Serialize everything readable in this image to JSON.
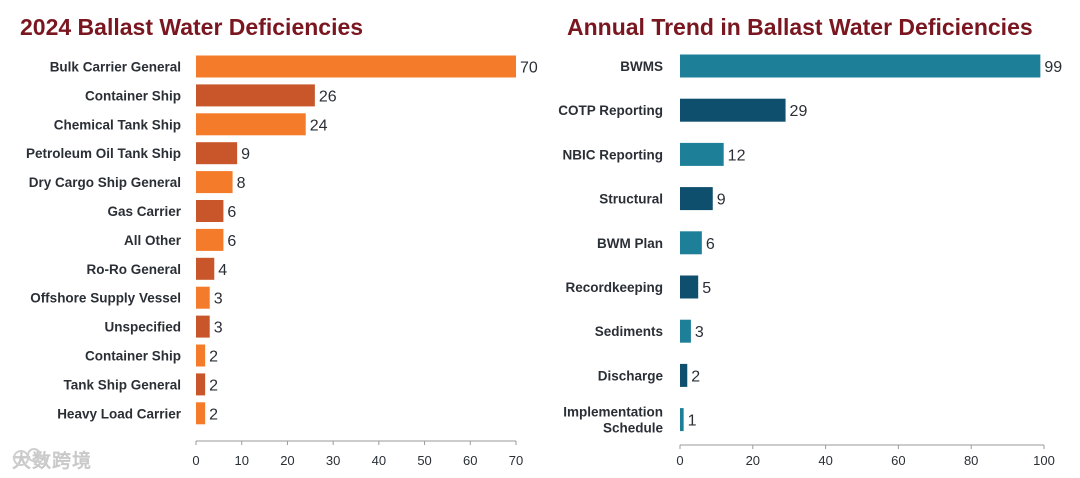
{
  "chart_data": [
    {
      "type": "bar",
      "orientation": "horizontal",
      "title": "2024 Ballast Water Deficiencies",
      "categories": [
        "Bulk Carrier General",
        "Container Ship",
        "Chemical Tank Ship",
        "Petroleum Oil Tank Ship",
        "Dry Cargo Ship General",
        "Gas Carrier",
        "All Other",
        "Ro-Ro General",
        "Offshore Supply Vessel",
        "Unspecified",
        "Container Ship",
        "Tank Ship General",
        "Heavy Load Carrier"
      ],
      "values": [
        70,
        26,
        24,
        9,
        8,
        6,
        6,
        4,
        3,
        3,
        2,
        2,
        2
      ],
      "xlim": [
        0,
        70
      ],
      "xticks": [
        0,
        10,
        20,
        30,
        40,
        50,
        60,
        70
      ],
      "colors": [
        "#f47b2a",
        "#c9562a"
      ],
      "grid": false
    },
    {
      "type": "bar",
      "orientation": "horizontal",
      "title": "Annual Trend in Ballast Water Deficiencies",
      "categories": [
        "BWMS",
        "COTP Reporting",
        "NBIC Reporting",
        "Structural",
        "BWM Plan",
        "Recordkeeping",
        "Sediments",
        "Discharge",
        "Implementation Schedule"
      ],
      "values": [
        99,
        29,
        12,
        9,
        6,
        5,
        3,
        2,
        1
      ],
      "xlim": [
        0,
        100
      ],
      "xticks": [
        0,
        20,
        40,
        60,
        80,
        100
      ],
      "colors": [
        "#1e7f99",
        "#0f4f6e"
      ],
      "grid": false
    }
  ],
  "watermark": "大数跨境"
}
